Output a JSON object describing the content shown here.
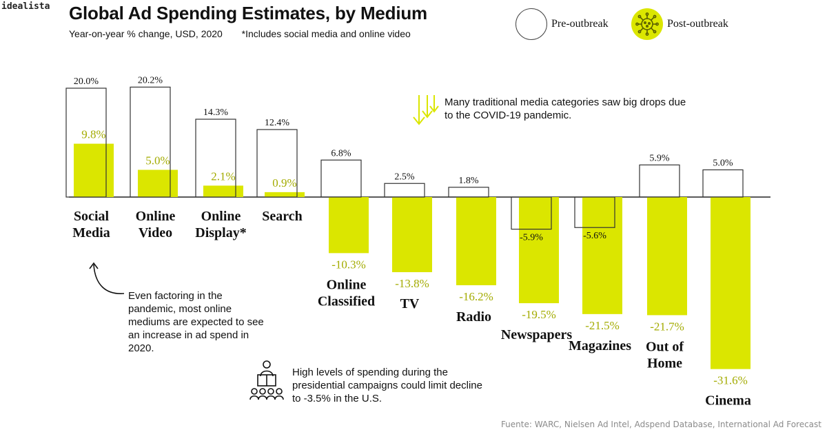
{
  "brand": "idealista",
  "title": "Global Ad Spending Estimates, by Medium",
  "subtitle": "Year-on-year % change, USD, 2020",
  "footnote": "*Includes social media and online video",
  "legend": {
    "pre": "Pre-outbreak",
    "post": "Post-outbreak"
  },
  "annotations": {
    "online": "Even factoring in the pandemic, most online mediums are expected to see an increase in ad spend in 2020.",
    "traditional": "Many traditional media categories saw big drops due to the COVID-19 pandemic.",
    "campaign": "High levels of spending during the presidential campaigns could limit decline to -3.5% in the U.S."
  },
  "source": "Fuente: WARC, Nielsen Ad Intel, Adspend Database, International Ad Forecast",
  "colors": {
    "post": "#dbe600",
    "post_text": "#a3ab00",
    "pre_border": "#333333"
  },
  "chart_data": {
    "type": "bar",
    "categories": [
      [
        "Social",
        "Media"
      ],
      [
        "Online",
        "Video"
      ],
      [
        "Online",
        "Display*"
      ],
      [
        "Search"
      ],
      [
        "Online",
        "Classified"
      ],
      [
        "TV"
      ],
      [
        "Radio"
      ],
      [
        "Newspapers"
      ],
      [
        "Magazines"
      ],
      [
        "Out of",
        "Home"
      ],
      [
        "Cinema"
      ]
    ],
    "series": [
      {
        "name": "Pre-outbreak",
        "values": [
          20.0,
          20.2,
          14.3,
          12.4,
          6.8,
          2.5,
          1.8,
          -5.9,
          -5.6,
          5.9,
          5.0
        ]
      },
      {
        "name": "Post-outbreak",
        "values": [
          9.8,
          5.0,
          2.1,
          0.9,
          -10.3,
          -13.8,
          -16.2,
          -19.5,
          -21.5,
          -21.7,
          -31.6
        ]
      }
    ],
    "unit": "%"
  }
}
